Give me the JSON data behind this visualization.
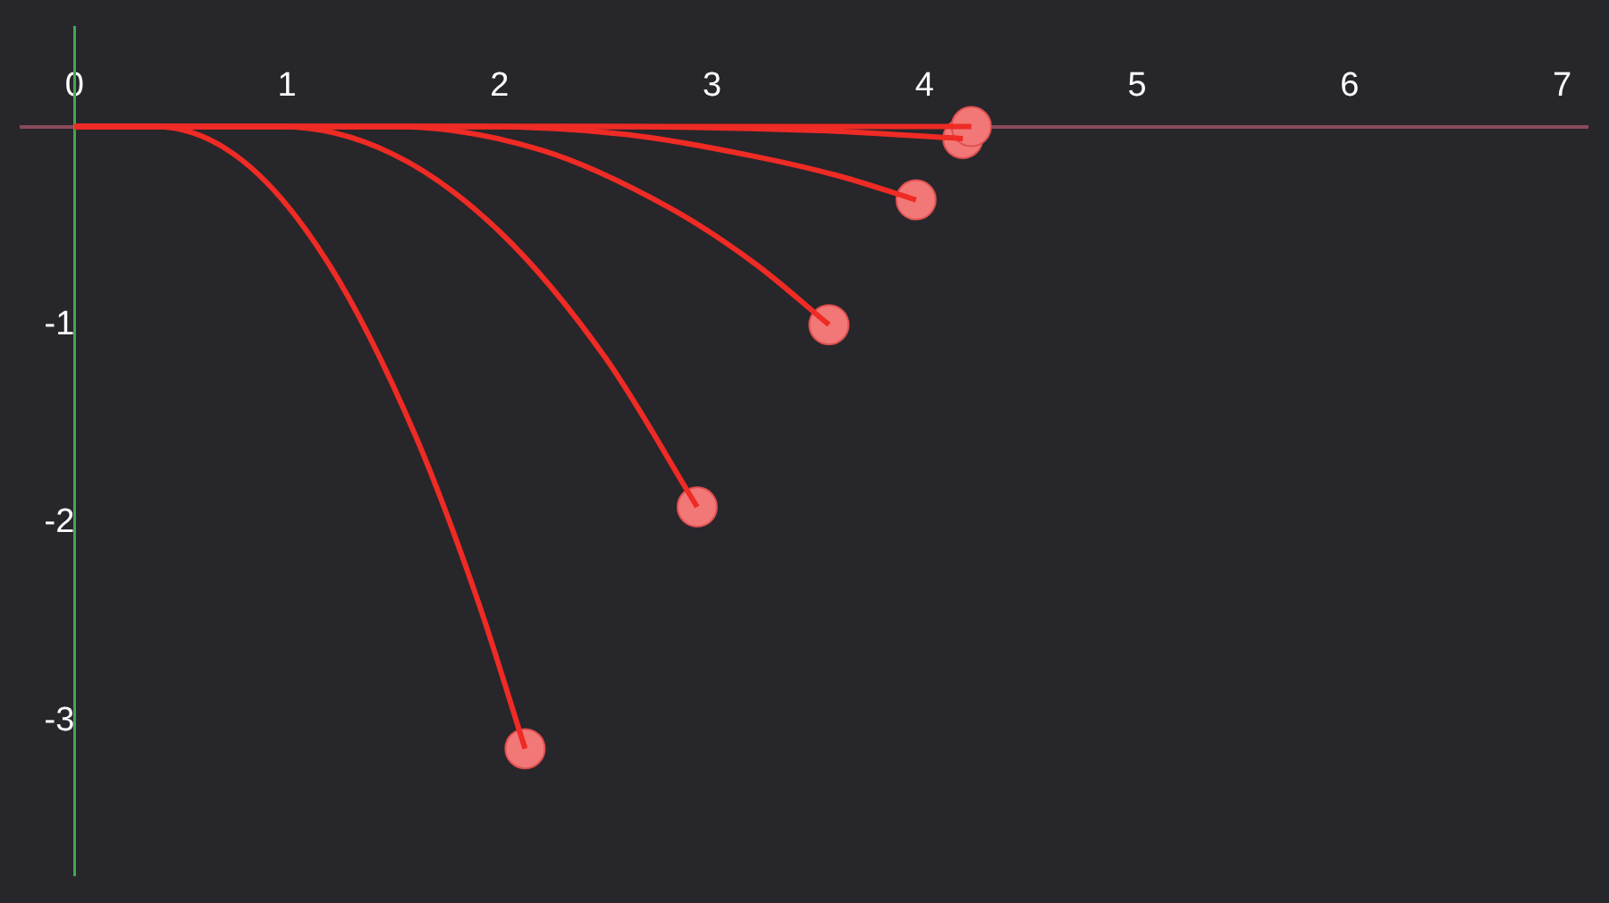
{
  "chart_data": {
    "type": "line",
    "xlim": [
      -0.25,
      7.12
    ],
    "ylim": [
      -3.78,
      0.5
    ],
    "xticks": [
      0,
      1,
      2,
      3,
      4,
      5,
      6,
      7
    ],
    "yticks": [
      -3,
      -2,
      -1
    ],
    "grid": false,
    "legend": false,
    "series": [
      {
        "color": "#ee2b24",
        "marker": "none",
        "x": [
          0,
          0.38,
          0.8,
          1.2,
          1.6,
          1.9,
          2.12
        ],
        "values": [
          0,
          0,
          -0.18,
          -0.7,
          -1.55,
          -2.4,
          -3.14
        ]
      },
      {
        "color": "#ee2b24",
        "marker": "none",
        "x": [
          0,
          0.97,
          1.5,
          2.0,
          2.5,
          2.93
        ],
        "values": [
          0,
          0,
          -0.14,
          -0.53,
          -1.17,
          -1.92
        ]
      },
      {
        "color": "#ee2b24",
        "marker": "none",
        "x": [
          0,
          1.5,
          2.2,
          2.8,
          3.2,
          3.55
        ],
        "values": [
          0,
          0,
          -0.12,
          -0.41,
          -0.69,
          -1.0
        ]
      },
      {
        "color": "#ee2b24",
        "marker": "none",
        "x": [
          0,
          1.9,
          2.6,
          3.2,
          3.6,
          3.96
        ],
        "values": [
          0,
          0,
          -0.04,
          -0.15,
          -0.25,
          -0.37
        ]
      },
      {
        "color": "#ee2b24",
        "marker": "none",
        "x": [
          0,
          2.5,
          3.5,
          4.18
        ],
        "values": [
          0,
          0,
          -0.02,
          -0.06
        ]
      },
      {
        "color": "#ee2b24",
        "marker": "none",
        "x": [
          0,
          4.22
        ],
        "values": [
          0,
          0
        ]
      },
      {
        "type": "scatter",
        "color": "#f27878",
        "marker": "circle",
        "x": [
          2.12,
          2.93,
          3.55,
          3.96,
          4.18,
          4.22
        ],
        "values": [
          -3.14,
          -1.92,
          -1.0,
          -0.37,
          -0.06,
          0
        ]
      }
    ]
  }
}
